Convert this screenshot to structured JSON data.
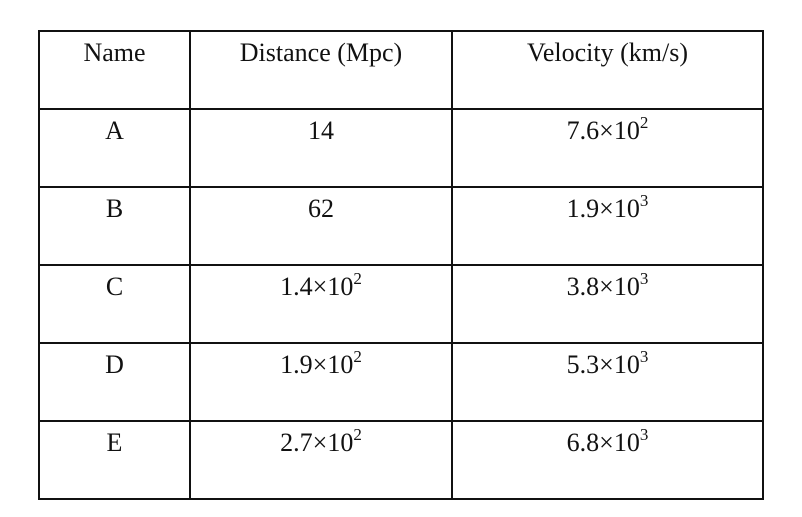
{
  "table": {
    "headers": [
      "Name",
      "Distance (Mpc)",
      "Velocity (km/s)"
    ],
    "rows": [
      {
        "name": "A",
        "distance": {
          "mantissa": "14",
          "exp": ""
        },
        "velocity": {
          "mantissa": "7.6×10",
          "exp": "2"
        }
      },
      {
        "name": "B",
        "distance": {
          "mantissa": "62",
          "exp": ""
        },
        "velocity": {
          "mantissa": "1.9×10",
          "exp": "3"
        }
      },
      {
        "name": "C",
        "distance": {
          "mantissa": "1.4×10",
          "exp": "2"
        },
        "velocity": {
          "mantissa": "3.8×10",
          "exp": "3"
        }
      },
      {
        "name": "D",
        "distance": {
          "mantissa": "1.9×10",
          "exp": "2"
        },
        "velocity": {
          "mantissa": "5.3×10",
          "exp": "3"
        }
      },
      {
        "name": "E",
        "distance": {
          "mantissa": "2.7×10",
          "exp": "2"
        },
        "velocity": {
          "mantissa": "6.8×10",
          "exp": "3"
        }
      }
    ]
  }
}
